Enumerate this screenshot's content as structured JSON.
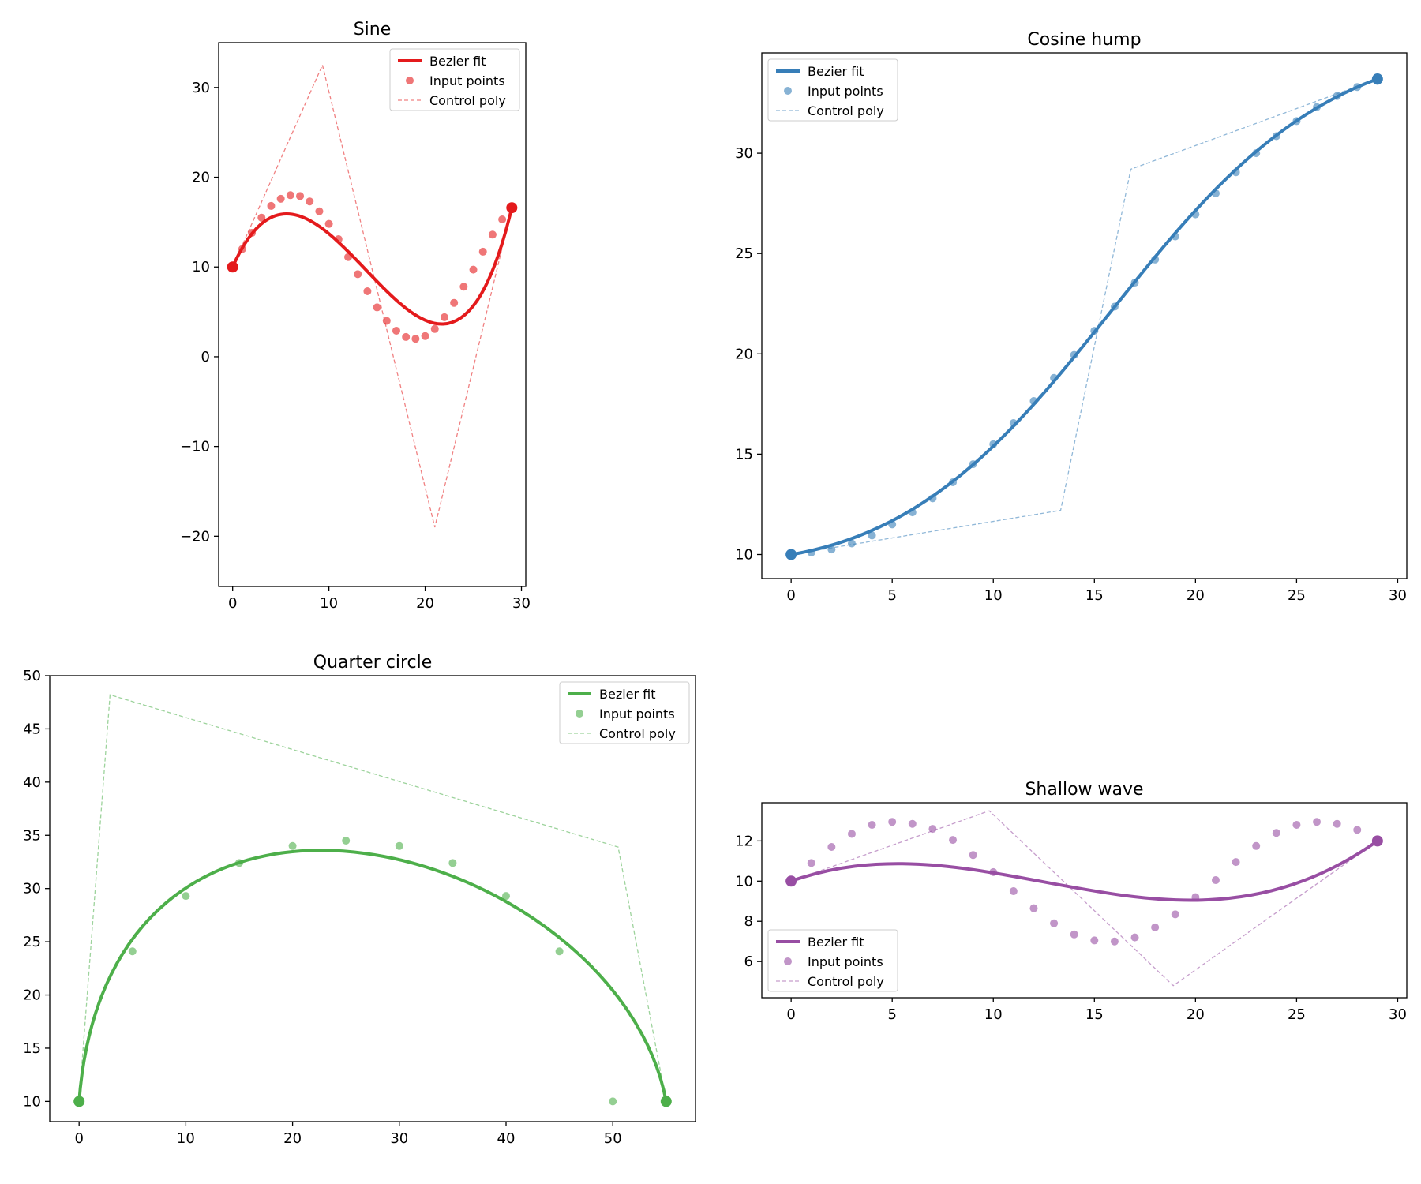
{
  "chart_data": [
    {
      "type": "line",
      "title": "Sine",
      "xlabel": "",
      "ylabel": "",
      "xlim": [
        -1.45,
        30.45
      ],
      "ylim": [
        -25.6,
        35.0
      ],
      "xticks": [
        0,
        10,
        20,
        30
      ],
      "yticks": [
        -20,
        -10,
        0,
        10,
        20,
        30
      ],
      "color": "#e41a1c",
      "legend_position": "upper right",
      "legend": [
        "Bezier fit",
        "Input points",
        "Control poly"
      ],
      "series": [
        {
          "name": "Input points",
          "kind": "scatter",
          "x": [
            0,
            1,
            2,
            3,
            4,
            5,
            6,
            7,
            8,
            9,
            10,
            11,
            12,
            13,
            14,
            15,
            16,
            17,
            18,
            19,
            20,
            21,
            22,
            23,
            24,
            25,
            26,
            27,
            28,
            29
          ],
          "y": [
            10,
            12.0,
            13.8,
            15.5,
            16.8,
            17.6,
            18.0,
            17.9,
            17.3,
            16.2,
            14.8,
            13.1,
            11.1,
            9.2,
            7.3,
            5.5,
            4.0,
            2.9,
            2.2,
            2.0,
            2.3,
            3.1,
            4.4,
            6.0,
            7.8,
            9.7,
            11.7,
            13.6,
            15.3,
            16.6
          ]
        },
        {
          "name": "Control poly",
          "kind": "dashed",
          "x": [
            0,
            9.33,
            21.0,
            29.0
          ],
          "y": [
            10,
            32.5,
            -19.0,
            16.6
          ]
        },
        {
          "name": "Bezier fit",
          "kind": "bezier",
          "x": [
            0,
            9.33,
            21.0,
            29.0
          ],
          "y": [
            10,
            32.5,
            -19.0,
            16.6
          ]
        }
      ],
      "endpoints": {
        "x": [
          0,
          29
        ],
        "y": [
          10,
          16.6
        ]
      }
    },
    {
      "type": "line",
      "title": "Cosine hump",
      "xlabel": "",
      "ylabel": "",
      "xlim": [
        -1.45,
        30.45
      ],
      "ylim": [
        8.8,
        35.0
      ],
      "xticks": [
        0,
        5,
        10,
        15,
        20,
        25,
        30
      ],
      "yticks": [
        10,
        15,
        20,
        25,
        30
      ],
      "color": "#377eb8",
      "legend_position": "upper left",
      "legend": [
        "Bezier fit",
        "Input points",
        "Control poly"
      ],
      "series": [
        {
          "name": "Input points",
          "kind": "scatter",
          "x": [
            0,
            1,
            2,
            3,
            4,
            5,
            6,
            7,
            8,
            9,
            10,
            11,
            12,
            13,
            14,
            15,
            16,
            17,
            18,
            19,
            20,
            21,
            22,
            23,
            24,
            25,
            26,
            27,
            28,
            29
          ],
          "y": [
            10,
            10.1,
            10.25,
            10.55,
            10.95,
            11.5,
            12.1,
            12.8,
            13.6,
            14.5,
            15.5,
            16.55,
            17.65,
            18.8,
            19.95,
            21.15,
            22.35,
            23.55,
            24.7,
            25.85,
            26.95,
            28.0,
            29.05,
            30.0,
            30.85,
            31.6,
            32.3,
            32.85,
            33.3,
            33.6
          ]
        },
        {
          "name": "Control poly",
          "kind": "dashed",
          "x": [
            0,
            13.33,
            16.8,
            29.0
          ],
          "y": [
            10,
            12.2,
            29.2,
            33.7
          ]
        },
        {
          "name": "Bezier fit",
          "kind": "bezier",
          "x": [
            0,
            13.33,
            16.8,
            29.0
          ],
          "y": [
            10,
            12.2,
            29.2,
            33.7
          ]
        }
      ],
      "endpoints": {
        "x": [
          0,
          29
        ],
        "y": [
          10,
          33.7
        ]
      }
    },
    {
      "type": "line",
      "title": "Quarter circle",
      "xlabel": "",
      "ylabel": "",
      "xlim": [
        -2.75,
        57.75
      ],
      "ylim": [
        8.1,
        50.0
      ],
      "xticks": [
        0,
        10,
        20,
        30,
        40,
        50
      ],
      "yticks": [
        10,
        15,
        20,
        25,
        30,
        35,
        40,
        45,
        50
      ],
      "color": "#4daf4a",
      "legend_position": "upper right",
      "legend": [
        "Bezier fit",
        "Input points",
        "Control poly"
      ],
      "series": [
        {
          "name": "Input points",
          "kind": "scatter",
          "x": [
            0,
            5,
            10,
            15,
            20,
            25,
            30,
            35,
            40,
            45,
            50
          ],
          "y": [
            10,
            24.1,
            29.3,
            32.4,
            34.0,
            34.5,
            34.0,
            32.4,
            29.3,
            24.1,
            10
          ]
        },
        {
          "name": "Control poly",
          "kind": "dashed",
          "x": [
            0,
            2.9,
            50.5,
            55.0
          ],
          "y": [
            10,
            48.2,
            33.9,
            10
          ]
        },
        {
          "name": "Bezier fit",
          "kind": "bezier",
          "x": [
            0,
            2.9,
            50.5,
            55.0
          ],
          "y": [
            10,
            48.2,
            33.9,
            10
          ]
        }
      ],
      "endpoints": {
        "x": [
          0,
          55
        ],
        "y": [
          10,
          10
        ]
      }
    },
    {
      "type": "line",
      "title": "Shallow wave",
      "xlabel": "",
      "ylabel": "",
      "xlim": [
        -1.45,
        30.45
      ],
      "ylim": [
        4.2,
        13.9
      ],
      "xticks": [
        0,
        5,
        10,
        15,
        20,
        25,
        30
      ],
      "yticks": [
        6,
        8,
        10,
        12
      ],
      "color": "#984ea3",
      "legend_position": "lower left",
      "legend": [
        "Bezier fit",
        "Input points",
        "Control poly"
      ],
      "series": [
        {
          "name": "Input points",
          "kind": "scatter",
          "x": [
            0,
            1,
            2,
            3,
            4,
            5,
            6,
            7,
            8,
            9,
            10,
            11,
            12,
            13,
            14,
            15,
            16,
            17,
            18,
            19,
            20,
            21,
            22,
            23,
            24,
            25,
            26,
            27,
            28,
            29
          ],
          "y": [
            10,
            10.9,
            11.7,
            12.35,
            12.8,
            12.95,
            12.85,
            12.6,
            12.05,
            11.3,
            10.45,
            9.5,
            8.65,
            7.9,
            7.35,
            7.05,
            7.0,
            7.2,
            7.7,
            8.35,
            9.2,
            10.05,
            10.95,
            11.75,
            12.4,
            12.8,
            12.95,
            12.85,
            12.55,
            12.0
          ]
        },
        {
          "name": "Control poly",
          "kind": "dashed",
          "x": [
            0,
            9.8,
            18.9,
            29.0
          ],
          "y": [
            10,
            13.5,
            4.8,
            12.0
          ]
        },
        {
          "name": "Bezier fit",
          "kind": "bezier",
          "x": [
            0,
            9.8,
            18.9,
            29.0
          ],
          "y": [
            10,
            13.5,
            4.8,
            12.0
          ]
        }
      ],
      "endpoints": {
        "x": [
          0,
          29
        ],
        "y": [
          10,
          12.0
        ]
      }
    }
  ]
}
